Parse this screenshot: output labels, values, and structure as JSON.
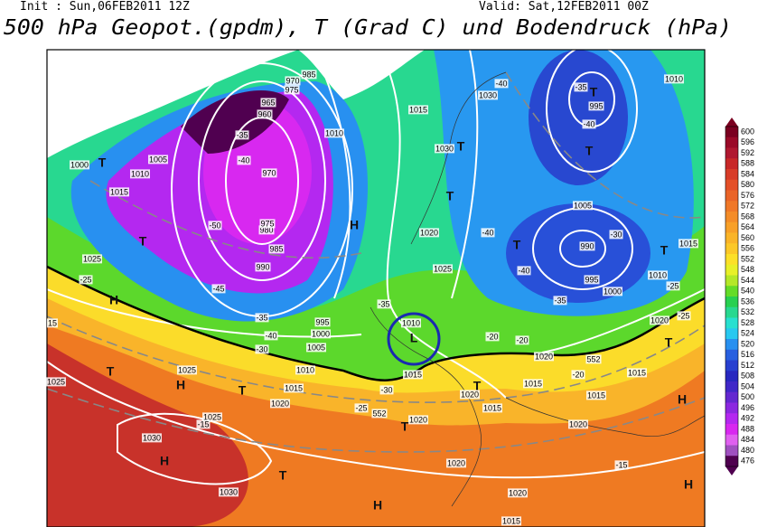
{
  "header": {
    "init": "Init : Sun,06FEB2011 12Z",
    "valid": "Valid: Sat,12FEB2011 00Z",
    "title": "500 hPa Geopot.(gpdm), T (Grad C) und Bodendruck (hPa)"
  },
  "colorbar": {
    "levels": [
      600,
      596,
      592,
      588,
      584,
      580,
      576,
      572,
      568,
      564,
      560,
      556,
      552,
      548,
      544,
      540,
      536,
      532,
      528,
      524,
      520,
      516,
      512,
      508,
      504,
      500,
      496,
      492,
      488,
      484,
      480,
      476
    ],
    "colors": [
      "#7a0020",
      "#9a0a28",
      "#b01830",
      "#c82828",
      "#d83c28",
      "#e45028",
      "#ea6428",
      "#f07828",
      "#f48c28",
      "#f8a028",
      "#fab428",
      "#fcc828",
      "#fce028",
      "#e8f028",
      "#b4e828",
      "#64dc28",
      "#28d050",
      "#28d890",
      "#28e0d0",
      "#28c8f0",
      "#2890f0",
      "#2860e0",
      "#2840d0",
      "#2828c0",
      "#4028c8",
      "#6428d0",
      "#8c28e0",
      "#b428f0",
      "#d828f0",
      "#e060f0",
      "#a050c0",
      "#500050"
    ]
  },
  "map_labels": [
    "1000",
    "1010",
    "1015",
    "1005",
    "1025",
    "-25",
    "15",
    "1025",
    "1025",
    "1025",
    "-15",
    "1030",
    "1030",
    "1020",
    "-25",
    "1015",
    "1010",
    "1005",
    "1000",
    "995",
    "990",
    "985",
    "980",
    "975",
    "970",
    "960",
    "965",
    "985",
    "975",
    "970",
    "-35",
    "-40",
    "-45",
    "-50",
    "-30",
    "-35",
    "-40",
    "1010",
    "1015",
    "1030",
    "1020",
    "1025",
    "-35",
    "1010",
    "1015",
    "-30",
    "1020",
    "1020",
    "1020",
    "1015",
    "1020",
    "1015",
    "-20",
    "-20",
    "1020",
    "1015",
    "-20",
    "1015",
    "1020",
    "-15",
    "1015",
    "1020",
    "-25",
    "-25",
    "1015",
    "1010",
    "1005",
    "990",
    "995",
    "1000",
    "-30",
    "-40",
    "-35",
    "995",
    "1010",
    "-40",
    "1030",
    "-40",
    "-40",
    "-35",
    "552",
    "552"
  ],
  "map_symbols": [
    "H",
    "H",
    "H",
    "H",
    "H",
    "H",
    "H",
    "T",
    "T",
    "T",
    "T",
    "T",
    "T",
    "T",
    "T",
    "T",
    "T",
    "T",
    "T",
    "T",
    "T",
    "L"
  ]
}
